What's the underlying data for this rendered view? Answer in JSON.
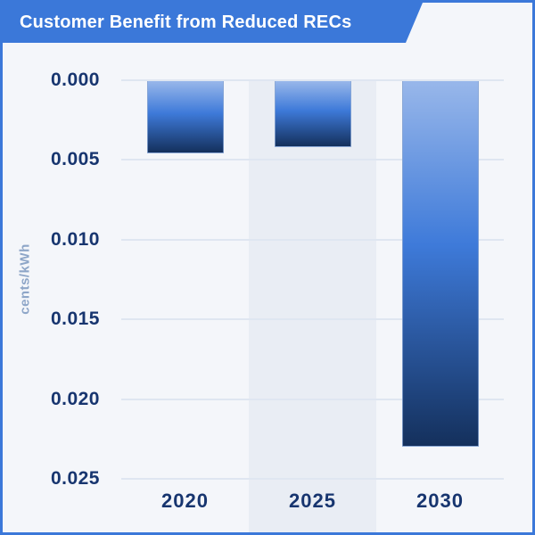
{
  "header": {
    "title": "Customer Benefit from Reduced RECs"
  },
  "chart_data": {
    "type": "bar",
    "title": "Customer Benefit from Reduced RECs",
    "categories": [
      "2020",
      "2025",
      "2030"
    ],
    "values": [
      0.0046,
      0.0042,
      0.023
    ],
    "xlabel": "",
    "ylabel": "cents/kWh",
    "unit": "cents/kWh",
    "ylim": [
      0,
      0.025
    ],
    "y_axis_inverted": true,
    "y_tick_labels": [
      "0.000",
      "0.005",
      "0.010",
      "0.015",
      "0.020",
      "0.025"
    ],
    "grid": true,
    "legend": false,
    "highlighted_category": "2025",
    "bars_hang_from_zero": true
  },
  "colors": {
    "banner_blue": "#3b78d9",
    "card_border": "#3b78d9",
    "background": "#f4f6fa",
    "highlight_band": "#e9edf4",
    "gridline": "#dfe6f1",
    "tick_text": "#17356f",
    "axis_label_text": "#8ea6c8",
    "title_text": "#ffffff",
    "bar_gradient_top": "#98b7ea",
    "bar_gradient_mid": "#3e7ad9",
    "bar_gradient_bottom": "#14305c",
    "bar_outline": "#8aa6d2"
  }
}
